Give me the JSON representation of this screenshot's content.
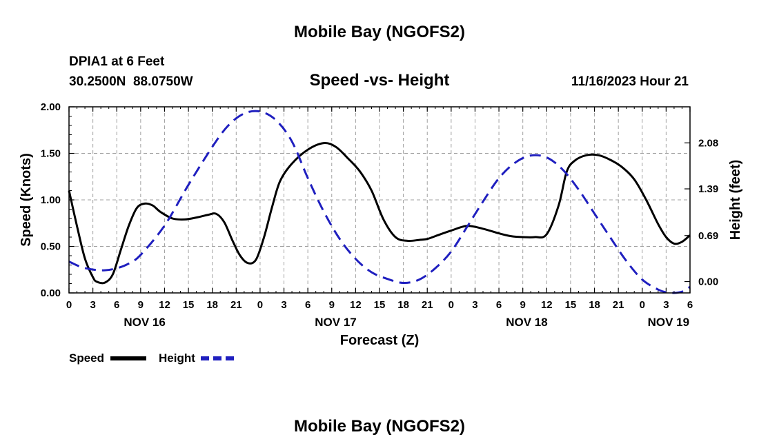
{
  "page": {
    "top_title": "Mobile Bay (NGOFS2)",
    "bottom_title": "Mobile Bay (NGOFS2)"
  },
  "header": {
    "station": "DPIA1 at 6 Feet",
    "coords": "30.2500N  88.0750W",
    "subtitle": "Speed -vs- Height",
    "datetime": "11/16/2023 Hour 21"
  },
  "legend": {
    "speed": "Speed",
    "height": "Height"
  },
  "colors": {
    "speed": "#000000",
    "height": "#1f1fbf",
    "grid": "#a0a0a0"
  },
  "chart_data": {
    "type": "line",
    "title": "Speed -vs- Height",
    "xlabel": "Forecast (Z)",
    "ylabel": "Speed (Knots)",
    "y2label": "Height (feet)",
    "x_unit": "hours from NOV 16 00Z",
    "xlim": [
      0,
      78
    ],
    "ylim": [
      0,
      2
    ],
    "y2lim": [
      -0.17,
      2.62
    ],
    "x_tick_hours": [
      0,
      3,
      6,
      9,
      12,
      15,
      18,
      21,
      24,
      27,
      30,
      33,
      36,
      39,
      42,
      45,
      48,
      51,
      54,
      57,
      60,
      63,
      66,
      69,
      72,
      75,
      78
    ],
    "x_tick_labels": [
      "0",
      "3",
      "6",
      "9",
      "12",
      "15",
      "18",
      "21",
      "0",
      "3",
      "6",
      "9",
      "12",
      "15",
      "18",
      "21",
      "0",
      "3",
      "6",
      "9",
      "12",
      "15",
      "18",
      "21",
      "0",
      "3",
      "6"
    ],
    "day_labels": [
      {
        "text": "NOV 16",
        "hour": 9.5
      },
      {
        "text": "NOV 17",
        "hour": 33.5
      },
      {
        "text": "NOV 18",
        "hour": 57.5
      },
      {
        "text": "NOV 19",
        "hour": 75.3
      }
    ],
    "y_ticks": [
      0,
      0.5,
      1.0,
      1.5,
      2.0
    ],
    "y_tick_labels": [
      "0.00",
      "0.50",
      "1.00",
      "1.50",
      "2.00"
    ],
    "y2_ticks": [
      0.0,
      0.69,
      1.39,
      2.08
    ],
    "y2_tick_labels": [
      "0.00",
      "0.69",
      "1.39",
      "2.08"
    ],
    "series": [
      {
        "name": "Speed",
        "axis": "left",
        "style": "solid",
        "x": [
          0,
          1,
          2,
          3,
          3.5,
          4.5,
          5.5,
          6.5,
          7.5,
          8.5,
          9.5,
          10.5,
          11.5,
          13,
          14.5,
          16,
          17.5,
          18.5,
          19.5,
          20.5,
          21.5,
          22.5,
          23.5,
          24.5,
          25.5,
          26.5,
          28,
          30,
          32,
          33.5,
          35,
          36.5,
          38,
          39.5,
          41,
          42.5,
          44,
          45,
          46,
          48,
          50,
          52,
          54,
          55.5,
          57,
          58.5,
          60,
          61.5,
          62.5,
          63.5,
          65,
          66.5,
          68,
          69.5,
          71,
          72.5,
          74,
          75,
          76,
          77,
          78
        ],
        "values": [
          1.1,
          0.72,
          0.37,
          0.17,
          0.12,
          0.11,
          0.2,
          0.46,
          0.72,
          0.91,
          0.96,
          0.94,
          0.87,
          0.8,
          0.79,
          0.81,
          0.84,
          0.85,
          0.76,
          0.57,
          0.4,
          0.32,
          0.36,
          0.6,
          0.92,
          1.2,
          1.39,
          1.54,
          1.61,
          1.57,
          1.45,
          1.31,
          1.1,
          0.79,
          0.6,
          0.56,
          0.57,
          0.58,
          0.61,
          0.67,
          0.72,
          0.69,
          0.64,
          0.61,
          0.6,
          0.6,
          0.63,
          0.94,
          1.3,
          1.42,
          1.48,
          1.48,
          1.43,
          1.35,
          1.22,
          1.0,
          0.74,
          0.6,
          0.53,
          0.55,
          0.62
        ]
      },
      {
        "name": "Height",
        "axis": "right",
        "style": "dashed",
        "x": [
          0,
          1.5,
          3,
          4.5,
          6,
          7.5,
          9,
          12,
          15,
          18,
          20,
          22,
          24,
          26,
          28,
          30,
          32,
          34,
          36,
          38,
          40,
          42,
          44,
          46,
          48,
          50,
          52,
          54,
          56,
          58,
          60,
          62,
          64,
          66,
          68,
          70,
          72,
          74,
          75,
          76,
          77,
          78
        ],
        "values": [
          0.3,
          0.22,
          0.18,
          0.17,
          0.2,
          0.27,
          0.4,
          0.84,
          1.45,
          2.02,
          2.34,
          2.52,
          2.55,
          2.42,
          2.1,
          1.55,
          1.05,
          0.64,
          0.34,
          0.14,
          0.04,
          -0.02,
          0.03,
          0.2,
          0.45,
          0.82,
          1.2,
          1.55,
          1.78,
          1.89,
          1.86,
          1.68,
          1.38,
          1.02,
          0.66,
          0.31,
          0.03,
          -0.12,
          -0.16,
          -0.17,
          -0.15,
          -0.08
        ]
      }
    ]
  }
}
